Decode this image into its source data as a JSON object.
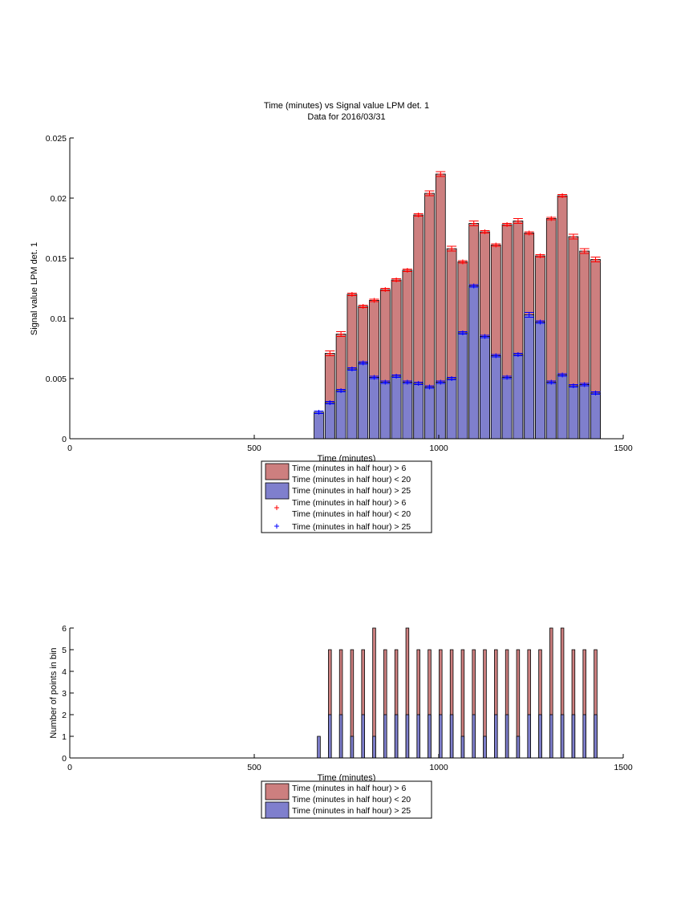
{
  "colors": {
    "bar_red": "#CD7F7F",
    "bar_blue": "#7F7FCD",
    "marker_red": "#FF0000",
    "marker_blue": "#0000FF",
    "axis": "#000000"
  },
  "chart_data": [
    {
      "type": "bar",
      "title": "Time (minutes) vs Signal value LPM det. 1",
      "subtitle": "Data for 2016/03/31",
      "xlabel": "Time (minutes)",
      "ylabel": "Signal value LPM det. 1",
      "xlim": [
        0,
        1500
      ],
      "ylim": [
        0,
        0.025
      ],
      "xticks": [
        0,
        500,
        1000,
        1500
      ],
      "yticks": [
        0,
        0.005,
        0.01,
        0.015,
        0.02,
        0.025
      ],
      "xtick_labels": [
        "0",
        "500",
        "1000",
        "1500"
      ],
      "ytick_labels": [
        "0",
        "0.005",
        "0.01",
        "0.015",
        "0.02",
        "0.025"
      ],
      "bar_width": 26,
      "series": [
        {
          "name": "Time (minutes in half hour) > 6\nTime (minutes in half hour) < 20",
          "legend_label": [
            "Time (minutes in half hour) > 6",
            "Time (minutes in half hour) < 20"
          ],
          "x": [
            705,
            735,
            765,
            795,
            825,
            855,
            885,
            915,
            945,
            975,
            1005,
            1035,
            1065,
            1095,
            1125,
            1155,
            1185,
            1215,
            1245,
            1275,
            1305,
            1335,
            1365,
            1395,
            1425
          ],
          "values": [
            0.0071,
            0.0087,
            0.012,
            0.011,
            0.0115,
            0.0124,
            0.0132,
            0.014,
            0.0186,
            0.0204,
            0.022,
            0.0158,
            0.0147,
            0.0179,
            0.0172,
            0.0161,
            0.0178,
            0.0181,
            0.0171,
            0.0152,
            0.0183,
            0.0202,
            0.0168,
            0.0156,
            0.0149
          ],
          "error": [
            0.0002,
            0.0002,
            0.0001,
            0.0001,
            0.0001,
            0.0001,
            0.0001,
            0.0001,
            0.0001,
            0.0002,
            0.0002,
            0.0002,
            0.0001,
            0.0002,
            0.0001,
            0.0001,
            0.0001,
            0.0002,
            0.0001,
            0.0001,
            0.0001,
            0.0001,
            0.0002,
            0.0002,
            0.0002
          ]
        },
        {
          "name": "Time (minutes in half hour) > 25",
          "legend_label": [
            "Time (minutes in half hour) > 25"
          ],
          "x": [
            675,
            705,
            735,
            765,
            795,
            825,
            855,
            885,
            915,
            945,
            975,
            1005,
            1035,
            1065,
            1095,
            1125,
            1155,
            1185,
            1215,
            1245,
            1275,
            1305,
            1335,
            1365,
            1395,
            1425
          ],
          "values": [
            0.0022,
            0.003,
            0.004,
            0.0058,
            0.0063,
            0.0051,
            0.0047,
            0.0052,
            0.0047,
            0.0046,
            0.0043,
            0.0047,
            0.005,
            0.0088,
            0.0127,
            0.0085,
            0.0069,
            0.0051,
            0.007,
            0.0103,
            0.0097,
            0.0047,
            0.0053,
            0.0044,
            0.0045,
            0.0038
          ],
          "error": [
            0.0001,
            0.0001,
            0.0001,
            0.0001,
            0.0001,
            0.0001,
            0.0001,
            0.0001,
            0.0001,
            0.0001,
            0.0001,
            0.0001,
            0.0001,
            0.0001,
            0.0001,
            0.0001,
            0.0001,
            0.0001,
            0.0001,
            0.0002,
            0.0001,
            0.0001,
            0.0001,
            0.0001,
            0.0001,
            0.0001
          ]
        }
      ],
      "legend": {
        "placement": "below",
        "entries": [
          [
            "Time (minutes in half hour) > 6",
            "Time (minutes in half hour) < 20"
          ],
          [
            "Time (minutes in half hour) > 25"
          ],
          [
            "Time (minutes in half hour) > 6",
            "Time (minutes in half hour) < 20"
          ],
          [
            "Time (minutes in half hour) > 25"
          ]
        ]
      }
    },
    {
      "type": "bar",
      "title": "",
      "xlabel": "Time (minutes)",
      "ylabel": "Number of points in bin",
      "xlim": [
        0,
        1500
      ],
      "ylim": [
        0,
        6
      ],
      "xticks": [
        0,
        500,
        1000,
        1500
      ],
      "yticks": [
        0,
        1,
        2,
        3,
        4,
        5,
        6
      ],
      "xtick_labels": [
        "0",
        "500",
        "1000",
        "1500"
      ],
      "ytick_labels": [
        "0",
        "1",
        "2",
        "3",
        "4",
        "5",
        "6"
      ],
      "bar_width": 8,
      "series": [
        {
          "name": "Time (minutes in half hour) > 6\nTime (minutes in half hour) < 20",
          "legend_label": [
            "Time (minutes in half hour) > 6",
            "Time (minutes in half hour) < 20"
          ],
          "x": [
            705,
            735,
            765,
            795,
            825,
            855,
            885,
            915,
            945,
            975,
            1005,
            1035,
            1065,
            1095,
            1125,
            1155,
            1185,
            1215,
            1245,
            1275,
            1305,
            1335,
            1365,
            1395,
            1425
          ],
          "values": [
            5,
            5,
            5,
            5,
            6,
            5,
            5,
            6,
            5,
            5,
            5,
            5,
            5,
            5,
            5,
            5,
            5,
            5,
            5,
            5,
            6,
            6,
            5,
            5,
            5
          ]
        },
        {
          "name": "Time (minutes in half hour) > 25",
          "legend_label": [
            "Time (minutes in half hour) > 25"
          ],
          "x": [
            675,
            705,
            735,
            765,
            795,
            825,
            855,
            885,
            915,
            945,
            975,
            1005,
            1035,
            1065,
            1095,
            1125,
            1155,
            1185,
            1215,
            1245,
            1275,
            1305,
            1335,
            1365,
            1395,
            1425
          ],
          "values": [
            1,
            2,
            2,
            1,
            2,
            1,
            2,
            2,
            2,
            2,
            2,
            2,
            2,
            1,
            2,
            1,
            2,
            2,
            1,
            2,
            2,
            2,
            2,
            2,
            2,
            2
          ]
        }
      ],
      "legend": {
        "placement": "below",
        "entries": [
          [
            "Time (minutes in half hour) > 6",
            "Time (minutes in half hour) < 20"
          ],
          [
            "Time (minutes in half hour) > 25"
          ]
        ]
      }
    }
  ]
}
